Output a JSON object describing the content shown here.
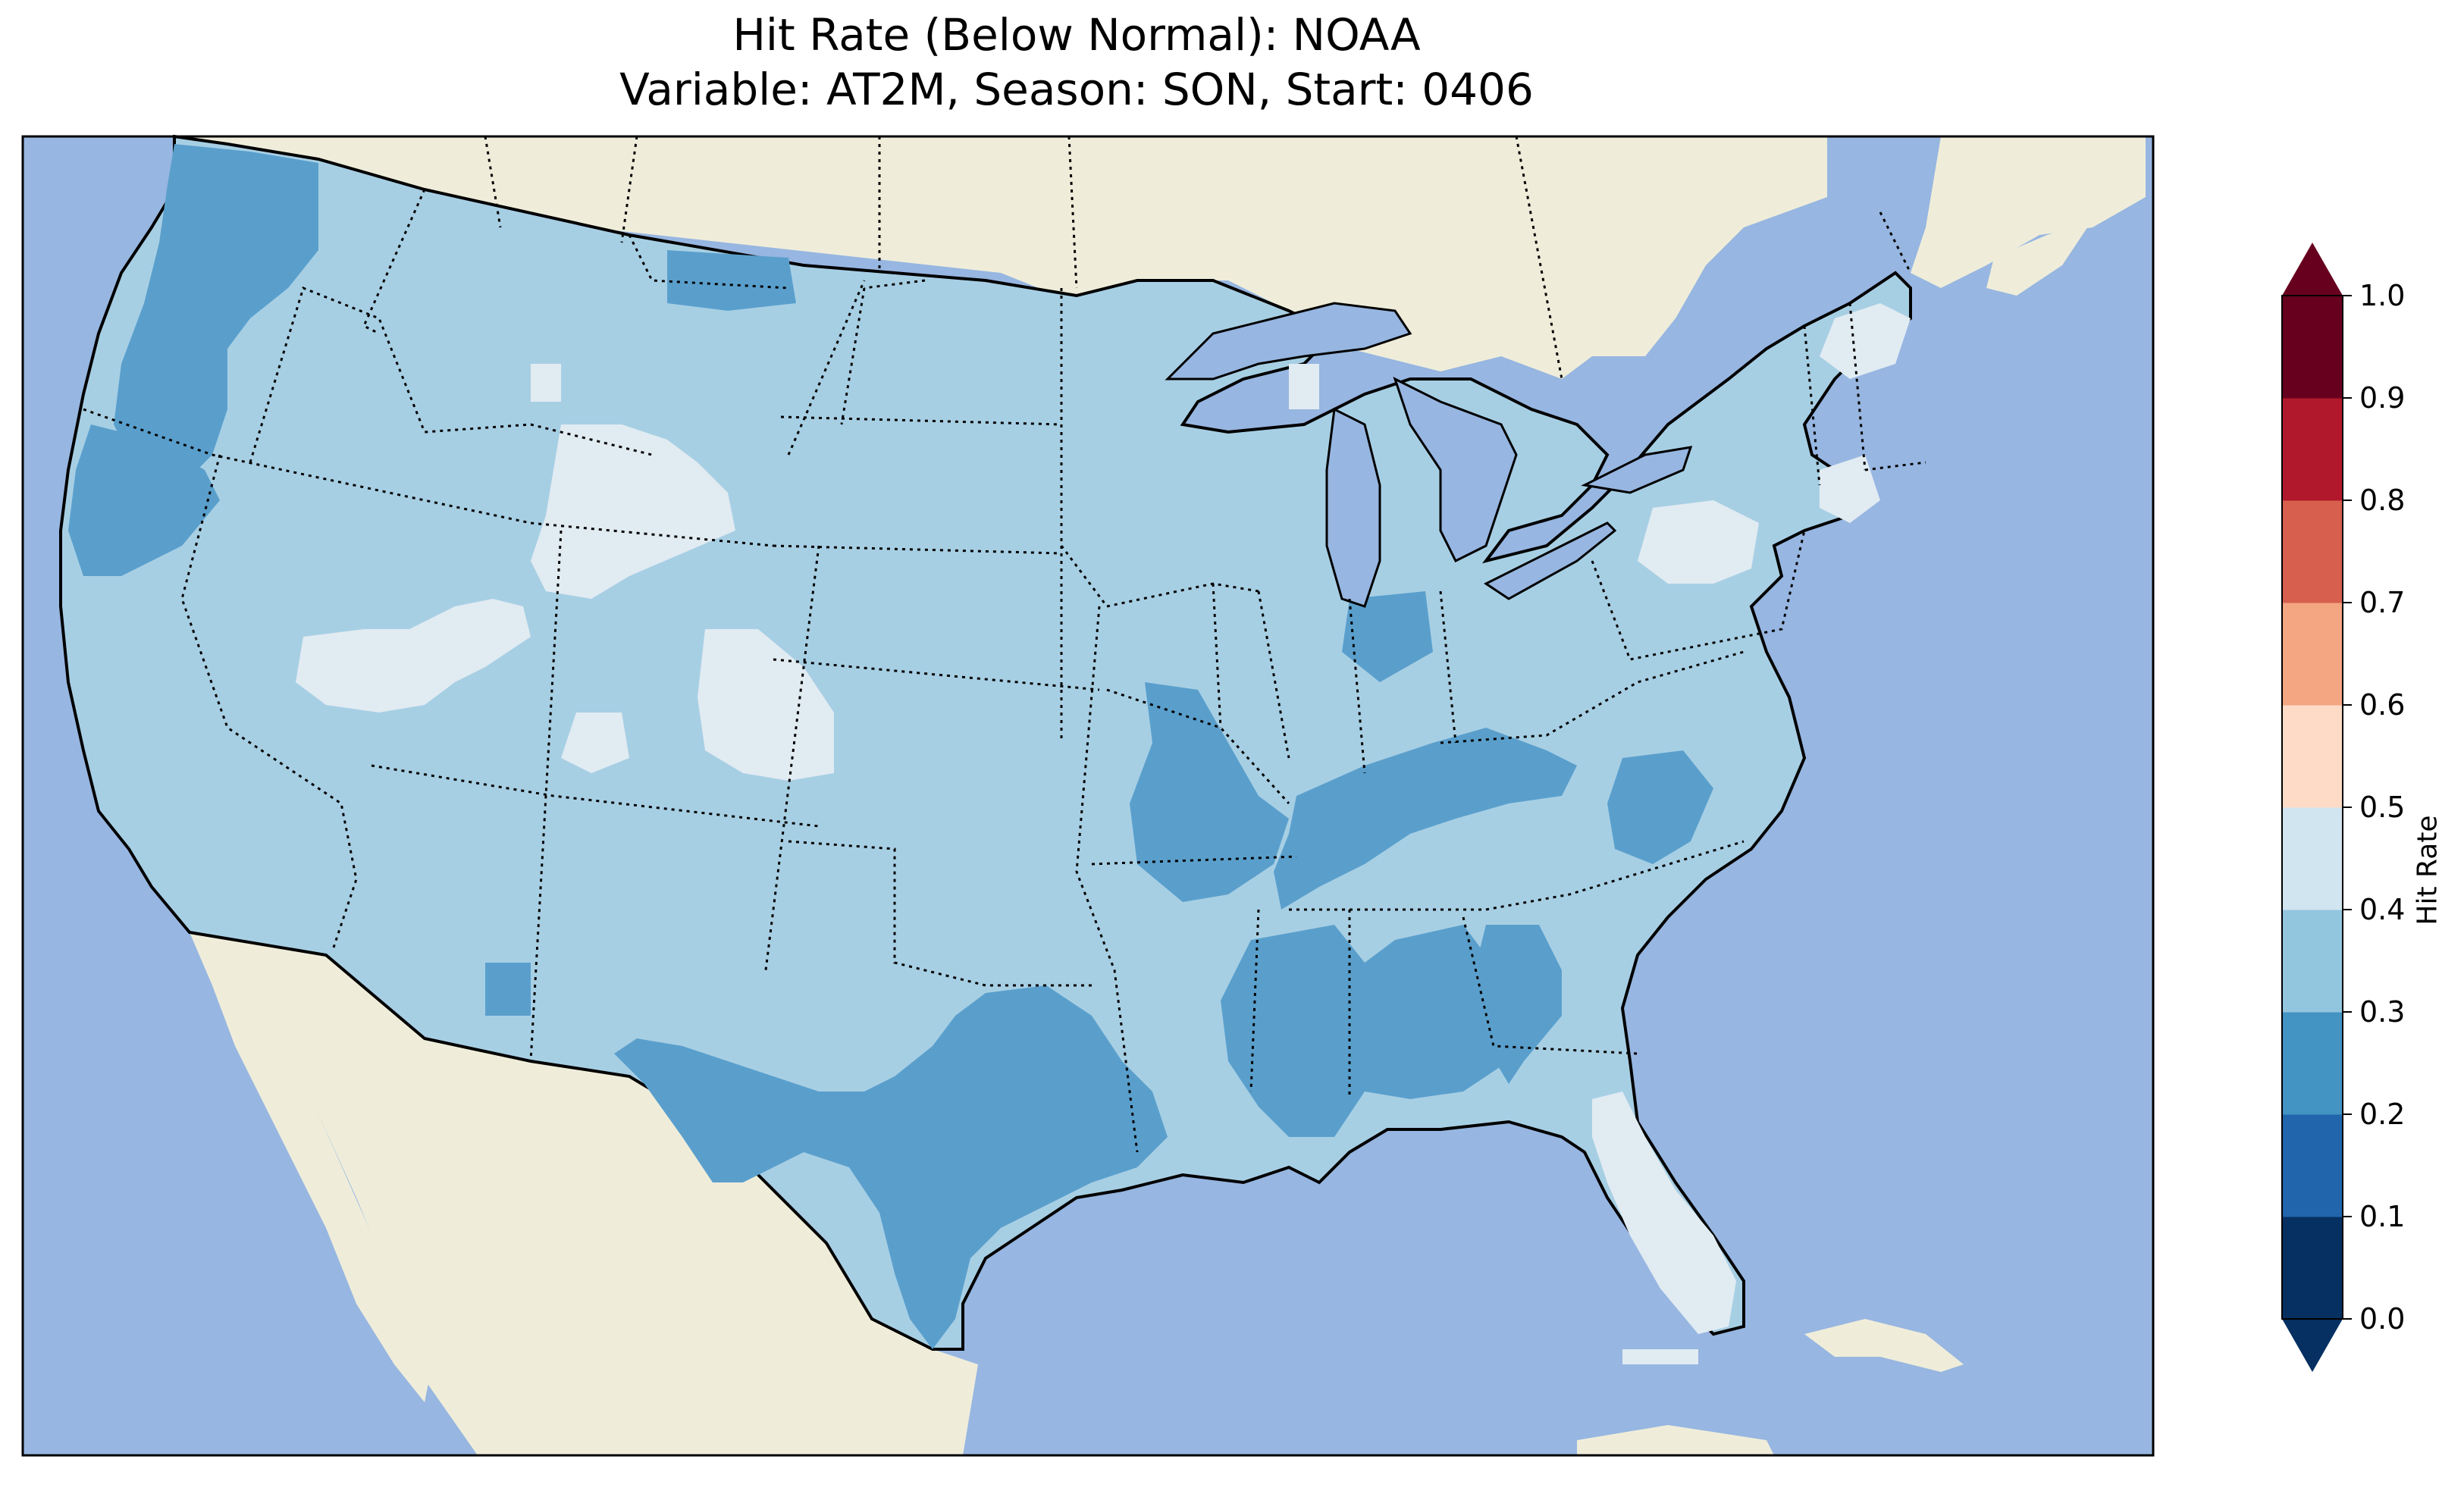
{
  "title": {
    "line1": "Hit Rate (Below Normal): NOAA",
    "line2": "Variable: AT2M, Season: SON, Start: 0406"
  },
  "map": {
    "variable": "AT2M",
    "season": "SON",
    "start": "0406",
    "metric": "Hit Rate (Below Normal)",
    "model": "NOAA",
    "region": "Contiguous United States",
    "colors": {
      "ocean": "#97b6e1",
      "land": "#efedda"
    },
    "dominant_value_range": [
      0.3,
      0.4
    ],
    "regions": [
      {
        "name": "Pacific Northwest coast",
        "range": [
          0.2,
          0.3
        ]
      },
      {
        "name": "Northern California coast",
        "range": [
          0.2,
          0.3
        ]
      },
      {
        "name": "Northern Montana border",
        "range": [
          0.2,
          0.3
        ]
      },
      {
        "name": "Central Idaho / Montana",
        "range": [
          0.4,
          0.5
        ]
      },
      {
        "name": "Nevada / Utah band",
        "range": [
          0.4,
          0.5
        ]
      },
      {
        "name": "Colorado",
        "range": [
          0.4,
          0.5
        ]
      },
      {
        "name": "Missouri / Arkansas",
        "range": [
          0.2,
          0.3
        ]
      },
      {
        "name": "Tennessee / Kentucky",
        "range": [
          0.2,
          0.3
        ]
      },
      {
        "name": "Mississippi / Alabama",
        "range": [
          0.2,
          0.3
        ]
      },
      {
        "name": "Texas / Oklahoma / Louisiana",
        "range": [
          0.2,
          0.3
        ]
      },
      {
        "name": "Central Indiana",
        "range": [
          0.2,
          0.3
        ]
      },
      {
        "name": "Virginia / North Carolina",
        "range": [
          0.2,
          0.3
        ]
      },
      {
        "name": "Western New York",
        "range": [
          0.4,
          0.5
        ]
      },
      {
        "name": "New England",
        "range": [
          0.4,
          0.5
        ]
      },
      {
        "name": "Florida peninsula",
        "range": [
          0.4,
          0.5
        ]
      }
    ]
  },
  "colorbar": {
    "label": "Hit Rate",
    "ticks": [
      "0.0",
      "0.1",
      "0.2",
      "0.3",
      "0.4",
      "0.5",
      "0.6",
      "0.7",
      "0.8",
      "0.9",
      "1.0"
    ],
    "colors": [
      "#053061",
      "#2166ac",
      "#4393c3",
      "#92c5de",
      "#d1e5f0",
      "#fddbc7",
      "#f4a582",
      "#d6604d",
      "#b2182b",
      "#67001f"
    ],
    "extend": "both"
  }
}
